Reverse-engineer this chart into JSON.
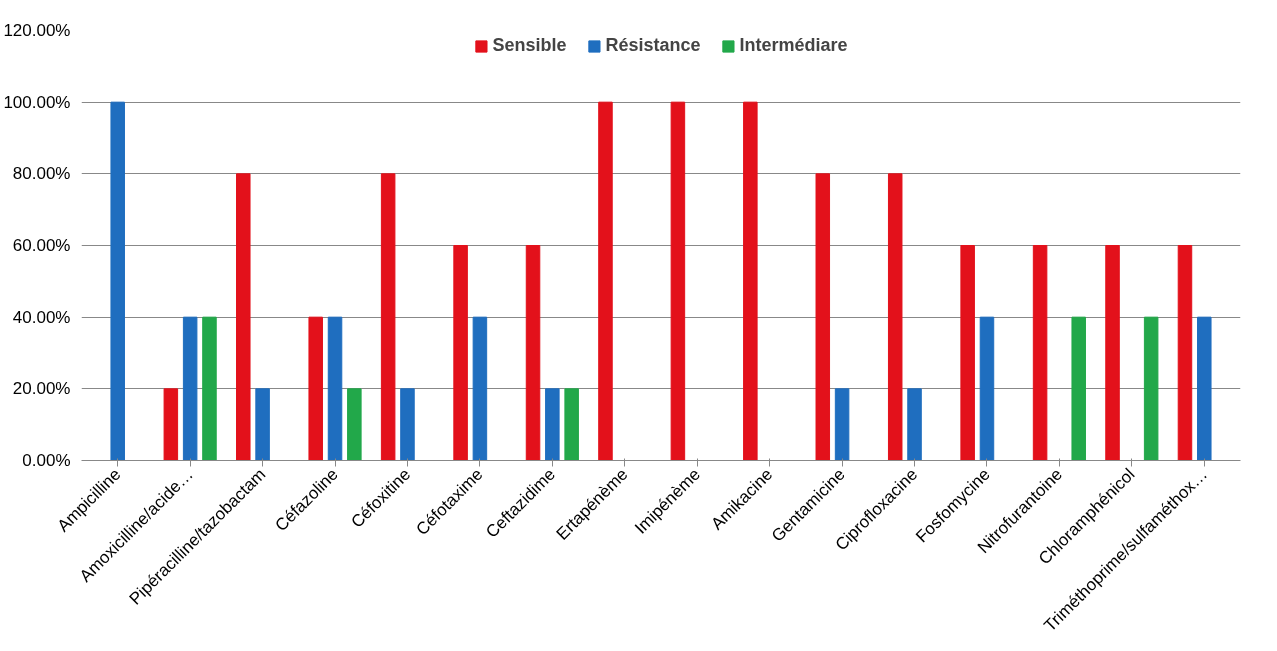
{
  "chart_data": {
    "type": "bar",
    "categories": [
      "Ampicilline",
      "Amoxicilline/acide…",
      "Pipéracilline/tazobactam",
      "Céfazoline",
      "Céfoxitine",
      "Céfotaxime",
      "Ceftazidime",
      "Ertapénème",
      "Imipénème",
      "Amikacine",
      "Gentamicine",
      "Ciprofloxacine",
      "Fosfomycine",
      "Nitrofurantoine",
      "Chloramphénicol",
      "Triméthoprime/sulfaméthox…"
    ],
    "series": [
      {
        "name": "Sensible",
        "color": "#e3111b",
        "values": [
          0,
          20,
          80,
          40,
          80,
          60,
          60,
          100,
          100,
          100,
          80,
          80,
          60,
          60,
          60,
          60
        ]
      },
      {
        "name": "Résistance",
        "color": "#1f6ebf",
        "values": [
          100,
          40,
          20,
          40,
          20,
          40,
          20,
          0,
          0,
          0,
          20,
          20,
          40,
          0,
          0,
          40
        ]
      },
      {
        "name": "Intermédiare",
        "color": "#22a84a",
        "values": [
          0,
          40,
          0,
          20,
          0,
          0,
          20,
          0,
          0,
          0,
          0,
          0,
          0,
          40,
          40,
          0
        ]
      }
    ],
    "ylim": [
      0,
      120
    ],
    "yticks": [
      {
        "value": 0,
        "label": "0.00%"
      },
      {
        "value": 20,
        "label": "20.00%"
      },
      {
        "value": 40,
        "label": "40.00%"
      },
      {
        "value": 60,
        "label": "60.00%"
      },
      {
        "value": 80,
        "label": "80.00%"
      },
      {
        "value": 100,
        "label": "100.00%"
      },
      {
        "value": 120,
        "label": "120.00%"
      }
    ],
    "grid": "y",
    "legend": "top"
  }
}
